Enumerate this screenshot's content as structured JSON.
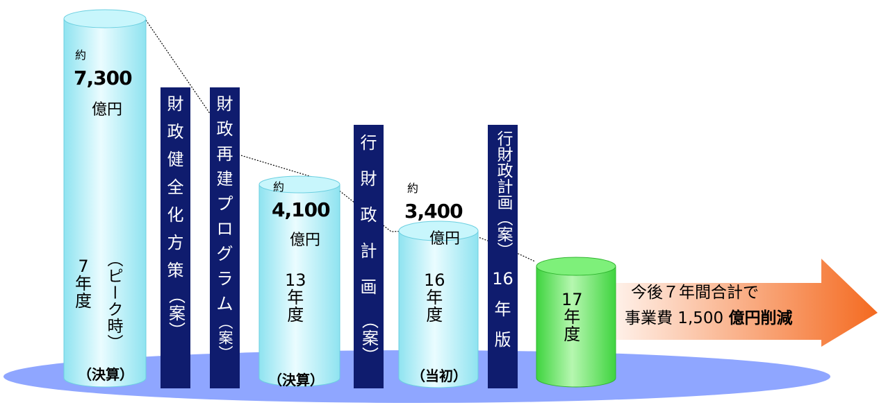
{
  "columns": [
    {
      "id": "y7",
      "approx": "約",
      "amount": "7,300",
      "unit": "億円",
      "year_chars": [
        "7",
        "年",
        "度"
      ],
      "peak_note": "（ピーク時）",
      "basis": "（決算）"
    },
    {
      "id": "y13",
      "approx": "約",
      "amount": "4,100",
      "unit": "億円",
      "year_chars": [
        "13",
        "年",
        "度"
      ],
      "basis": "（決算）"
    },
    {
      "id": "y16",
      "approx": "約",
      "amount": "3,400",
      "unit": "億円",
      "year_chars": [
        "16",
        "年",
        "度"
      ],
      "basis": "（当初）"
    },
    {
      "id": "y17",
      "year_chars": [
        "17",
        "年",
        "度"
      ]
    }
  ],
  "plans": [
    {
      "id": "plan1",
      "chars": [
        "財",
        "政",
        "健",
        "全",
        "化",
        "方",
        "策",
        "（案）"
      ]
    },
    {
      "id": "plan2",
      "chars": [
        "財",
        "政",
        "再",
        "建",
        "プ",
        "ロ",
        "グ",
        "ラ",
        "ム",
        "（案）"
      ]
    },
    {
      "id": "plan3",
      "chars": [
        "行",
        "財",
        "政",
        "計",
        "画",
        "（案）"
      ]
    },
    {
      "id": "plan4",
      "chars": [
        "行財政計画（案）"
      ],
      "edition": [
        "16",
        "年",
        "版"
      ]
    }
  ],
  "arrow": {
    "line1": "今後７年間合計で",
    "line2_prefix": "事業費 1,500 ",
    "line2_bold": "億円削減"
  },
  "colors": {
    "cyl_light": "#eafcff",
    "cyl_dark": "#8fe3f0",
    "cyl_green_light": "#b6f7b0",
    "cyl_green_dark": "#3fd43f",
    "plan_bg": "#0f1c6e",
    "ellipse": "#8fa6ff",
    "arrow_start": "#fff4ee",
    "arrow_end": "#f46a20"
  }
}
